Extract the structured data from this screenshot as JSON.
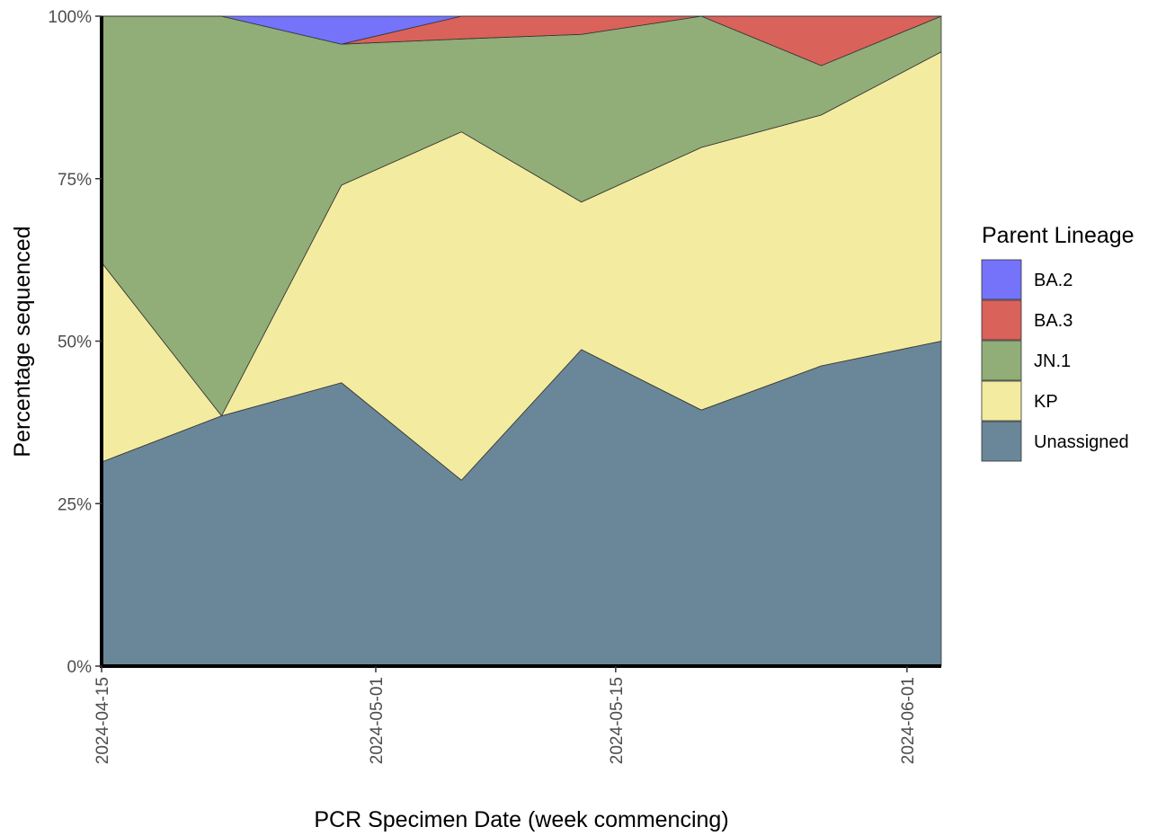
{
  "chart_data": {
    "type": "stacked_area",
    "x_label": "PCR Specimen Date (week commencing)",
    "y_label": "Percentage sequenced",
    "legend_title": "Parent Lineage",
    "x": [
      "2024-04-15",
      "2024-04-22",
      "2024-04-29",
      "2024-05-06",
      "2024-05-13",
      "2024-05-20",
      "2024-05-27",
      "2024-06-03"
    ],
    "xlim": [
      "2024-04-15",
      "2024-06-03"
    ],
    "xticks": [
      "2024-04-15",
      "2024-05-01",
      "2024-05-15",
      "2024-06-01"
    ],
    "ylim": [
      0,
      100
    ],
    "yticks": [
      {
        "value": 0,
        "label": "0%"
      },
      {
        "value": 25,
        "label": "25%"
      },
      {
        "value": 50,
        "label": "50%"
      },
      {
        "value": 75,
        "label": "75%"
      },
      {
        "value": 100,
        "label": "100%"
      }
    ],
    "legend_position": "right",
    "series": [
      {
        "name": "BA.2",
        "color": "#7473fa",
        "values": [
          0,
          0,
          4.3,
          0,
          0,
          0,
          0,
          0
        ]
      },
      {
        "name": "BA.3",
        "color": "#d9625a",
        "values": [
          0,
          0,
          0,
          3.5,
          2.8,
          0,
          7.6,
          0
        ]
      },
      {
        "name": "JN.1",
        "color": "#91ad78",
        "values": [
          37.9,
          61.5,
          21.7,
          14.3,
          25.8,
          20.2,
          7.6,
          5.5
        ]
      },
      {
        "name": "KP",
        "color": "#f3eba0",
        "values": [
          30.7,
          0,
          30.4,
          53.6,
          22.7,
          40.4,
          38.6,
          44.5
        ]
      },
      {
        "name": "Unassigned",
        "color": "#6a8799",
        "values": [
          31.4,
          38.5,
          43.6,
          28.6,
          48.7,
          39.4,
          46.2,
          50
        ]
      }
    ]
  }
}
